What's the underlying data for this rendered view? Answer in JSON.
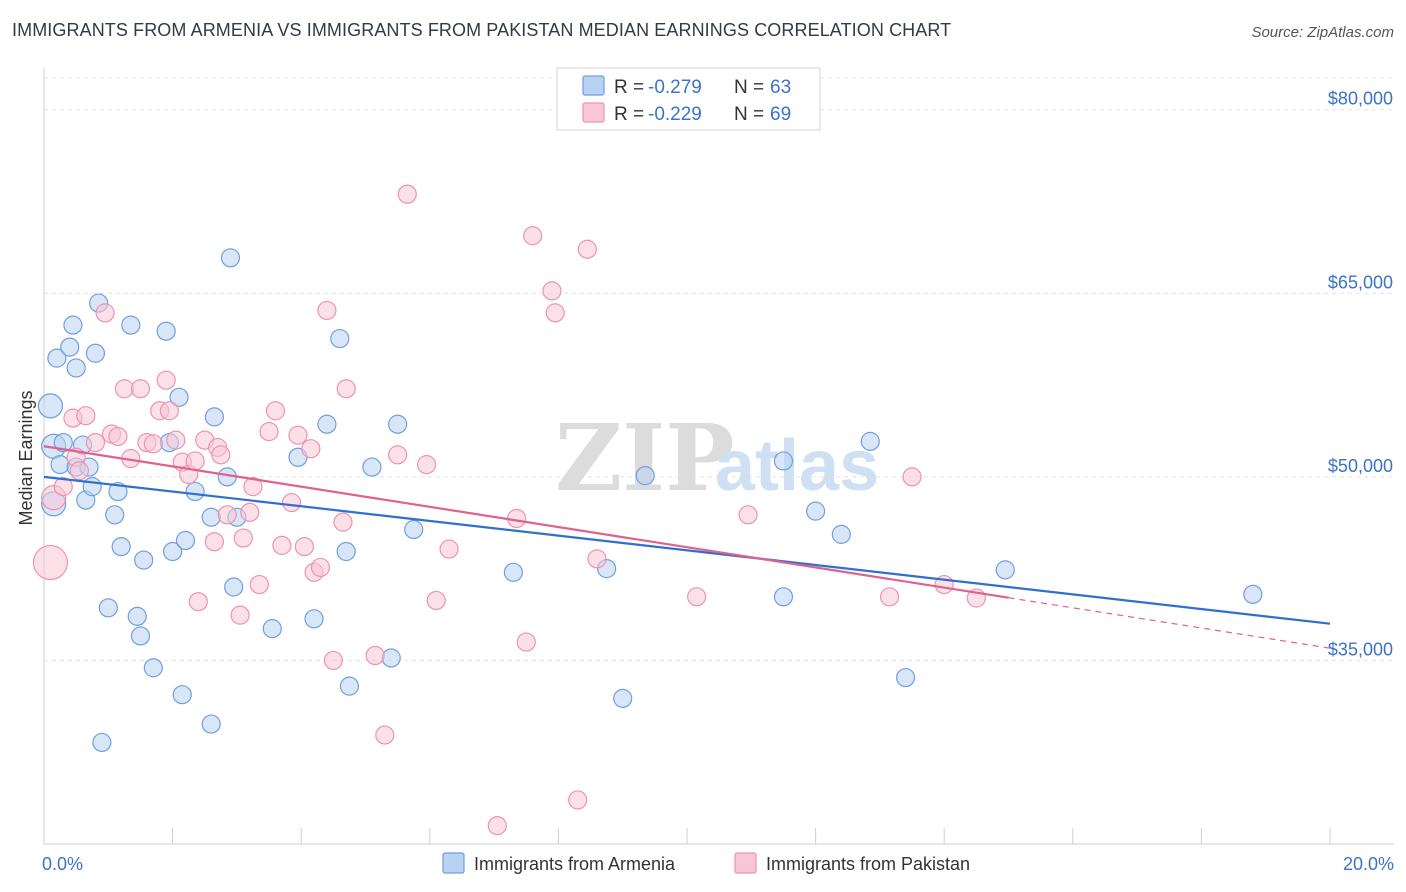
{
  "header": {
    "title": "IMMIGRANTS FROM ARMENIA VS IMMIGRANTS FROM PAKISTAN MEDIAN EARNINGS CORRELATION CHART",
    "source": "Source: ZipAtlas.com"
  },
  "watermark": {
    "zip": "ZIP",
    "atlas": "atlas"
  },
  "chart_data": {
    "type": "scatter",
    "title": "IMMIGRANTS FROM ARMENIA VS IMMIGRANTS FROM PAKISTAN MEDIAN EARNINGS CORRELATION CHART",
    "xlabel": "",
    "ylabel": "Median Earnings",
    "xlim": [
      0,
      20
    ],
    "ylim": [
      20000,
      83000
    ],
    "x_tick_labels": {
      "min": "0.0%",
      "max": "20.0%"
    },
    "y_ticks": [
      {
        "value": 35000,
        "label": "$35,000"
      },
      {
        "value": 50000,
        "label": "$50,000"
      },
      {
        "value": 65000,
        "label": "$65,000"
      },
      {
        "value": 80000,
        "label": "$80,000"
      }
    ],
    "grid": true,
    "legend_position": "top-center",
    "stats": [
      {
        "r_label": "R =",
        "r_value": "-0.279",
        "n_label": "N =",
        "n_value": "63"
      },
      {
        "r_label": "R =",
        "r_value": "-0.229",
        "n_label": "N =",
        "n_value": "69"
      }
    ],
    "series": [
      {
        "name": "Immigrants from Armenia",
        "color": "#6f9fdd",
        "fill": "#b9d2f2",
        "line_color": "#2f6fcf",
        "trend": {
          "x0": 0,
          "y0": 50000,
          "x1": 20,
          "y1": 38000,
          "solid_to": 20
        },
        "points": [
          [
            0.1,
            55800
          ],
          [
            0.15,
            52500
          ],
          [
            0.15,
            47800
          ],
          [
            0.2,
            59700
          ],
          [
            0.25,
            51000
          ],
          [
            0.3,
            52800
          ],
          [
            0.4,
            60600
          ],
          [
            0.45,
            62400
          ],
          [
            0.5,
            50800
          ],
          [
            0.5,
            58900
          ],
          [
            0.6,
            52600
          ],
          [
            0.65,
            48100
          ],
          [
            0.7,
            50800
          ],
          [
            0.75,
            49200
          ],
          [
            0.8,
            60100
          ],
          [
            0.85,
            64200
          ],
          [
            0.9,
            28300
          ],
          [
            1.0,
            39300
          ],
          [
            1.1,
            46900
          ],
          [
            1.15,
            48800
          ],
          [
            1.2,
            44300
          ],
          [
            1.35,
            62400
          ],
          [
            1.45,
            38600
          ],
          [
            1.5,
            37000
          ],
          [
            1.55,
            43200
          ],
          [
            1.7,
            34400
          ],
          [
            1.9,
            61900
          ],
          [
            1.95,
            52800
          ],
          [
            2.0,
            43900
          ],
          [
            2.1,
            56500
          ],
          [
            2.15,
            32200
          ],
          [
            2.2,
            44800
          ],
          [
            2.35,
            48800
          ],
          [
            2.6,
            46700
          ],
          [
            2.6,
            29800
          ],
          [
            2.65,
            54900
          ],
          [
            2.85,
            50000
          ],
          [
            2.9,
            67900
          ],
          [
            2.95,
            41000
          ],
          [
            3.0,
            46700
          ],
          [
            3.55,
            37600
          ],
          [
            3.95,
            51600
          ],
          [
            4.2,
            38400
          ],
          [
            4.4,
            54300
          ],
          [
            4.6,
            61300
          ],
          [
            4.7,
            43900
          ],
          [
            4.75,
            32900
          ],
          [
            5.1,
            50800
          ],
          [
            5.4,
            35200
          ],
          [
            5.5,
            54300
          ],
          [
            5.75,
            45700
          ],
          [
            7.3,
            42200
          ],
          [
            8.75,
            42500
          ],
          [
            9.0,
            31900
          ],
          [
            9.35,
            50100
          ],
          [
            11.5,
            51300
          ],
          [
            11.5,
            40200
          ],
          [
            12.0,
            47200
          ],
          [
            12.4,
            45300
          ],
          [
            12.85,
            52900
          ],
          [
            13.4,
            33600
          ],
          [
            14.95,
            42400
          ],
          [
            18.8,
            40400
          ]
        ]
      },
      {
        "name": "Immigrants from Pakistan",
        "color": "#ec93b2",
        "fill": "#f8c6d6",
        "line_color": "#e0608f",
        "trend": {
          "x0": 0,
          "y0": 52500,
          "x1": 20,
          "y1": 36000,
          "solid_to": 15
        },
        "points": [
          [
            0.1,
            43000
          ],
          [
            0.15,
            48300
          ],
          [
            0.3,
            49200
          ],
          [
            0.45,
            54800
          ],
          [
            0.5,
            51600
          ],
          [
            0.55,
            50500
          ],
          [
            0.65,
            55000
          ],
          [
            0.8,
            52800
          ],
          [
            0.95,
            63400
          ],
          [
            1.05,
            53500
          ],
          [
            1.15,
            53300
          ],
          [
            1.25,
            57200
          ],
          [
            1.35,
            51500
          ],
          [
            1.5,
            57200
          ],
          [
            1.6,
            52800
          ],
          [
            1.7,
            52700
          ],
          [
            1.8,
            55400
          ],
          [
            1.9,
            57900
          ],
          [
            1.95,
            55400
          ],
          [
            2.05,
            53000
          ],
          [
            2.15,
            51200
          ],
          [
            2.25,
            50200
          ],
          [
            2.35,
            51300
          ],
          [
            2.4,
            39800
          ],
          [
            2.5,
            53000
          ],
          [
            2.65,
            44700
          ],
          [
            2.7,
            52400
          ],
          [
            2.75,
            51800
          ],
          [
            2.85,
            46900
          ],
          [
            3.05,
            38700
          ],
          [
            3.1,
            45000
          ],
          [
            3.2,
            47100
          ],
          [
            3.25,
            49200
          ],
          [
            3.35,
            41200
          ],
          [
            3.5,
            53700
          ],
          [
            3.6,
            55400
          ],
          [
            3.7,
            44400
          ],
          [
            3.85,
            47900
          ],
          [
            3.95,
            53400
          ],
          [
            4.05,
            44300
          ],
          [
            4.15,
            52300
          ],
          [
            4.2,
            42200
          ],
          [
            4.3,
            42600
          ],
          [
            4.4,
            63600
          ],
          [
            4.5,
            35000
          ],
          [
            4.65,
            46300
          ],
          [
            4.7,
            57200
          ],
          [
            5.15,
            35400
          ],
          [
            5.3,
            28900
          ],
          [
            5.5,
            51800
          ],
          [
            5.65,
            73100
          ],
          [
            5.95,
            51000
          ],
          [
            6.1,
            39900
          ],
          [
            6.3,
            44100
          ],
          [
            7.05,
            21500
          ],
          [
            7.35,
            46600
          ],
          [
            7.5,
            36500
          ],
          [
            7.6,
            69700
          ],
          [
            7.9,
            65200
          ],
          [
            7.95,
            63400
          ],
          [
            8.3,
            23600
          ],
          [
            8.45,
            68600
          ],
          [
            8.6,
            43300
          ],
          [
            10.15,
            40200
          ],
          [
            10.95,
            46900
          ],
          [
            13.15,
            40200
          ],
          [
            13.5,
            50000
          ],
          [
            14.0,
            41200
          ],
          [
            14.5,
            40100
          ]
        ]
      }
    ]
  }
}
